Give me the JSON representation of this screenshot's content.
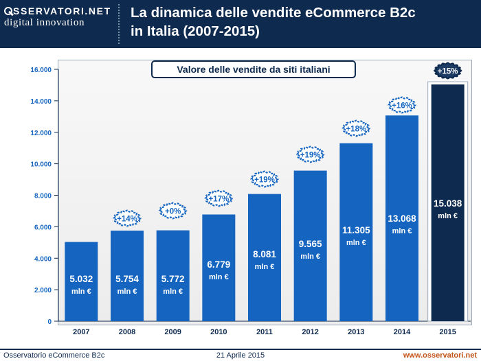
{
  "header": {
    "logo_top": "SSERVATORI.NET",
    "logo_bottom": "digital innovation",
    "title_line1": "La dinamica delle vendite eCommerce B2c",
    "title_line2": "in Italia (2007-2015)"
  },
  "chart_data": {
    "type": "bar",
    "title": "Valore delle vendite da siti italiani",
    "categories": [
      "2007",
      "2008",
      "2009",
      "2010",
      "2011",
      "2012",
      "2013",
      "2014",
      "2015"
    ],
    "values": [
      5032,
      5754,
      5772,
      6779,
      8081,
      9565,
      11305,
      13068,
      15038
    ],
    "value_labels": [
      "5.032",
      "5.754",
      "5.772",
      "6.779",
      "8.081",
      "9.565",
      "11.305",
      "13.068",
      "15.038"
    ],
    "unit_label": "mln €",
    "growth_labels": [
      "+14%",
      "+0%",
      "+17%",
      "+19%",
      "+19%",
      "+18%",
      "+16%",
      "+15%"
    ],
    "growth_categories": [
      "2008",
      "2009",
      "2010",
      "2011",
      "2012",
      "2013",
      "2014",
      "2015"
    ],
    "ylim": [
      0,
      16000
    ],
    "yticks": [
      0,
      2000,
      4000,
      6000,
      8000,
      10000,
      12000,
      14000,
      16000
    ],
    "ytick_labels": [
      "0",
      "2.000",
      "4.000",
      "6.000",
      "8.000",
      "10.000",
      "12.000",
      "14.000",
      "16.000"
    ],
    "colors": {
      "bar": "#1565c0",
      "bar_highlight": "#0e2a4e",
      "label_text": "#1565c0"
    }
  },
  "footer": {
    "left": "Osservatorio eCommerce B2c",
    "center": "21 Aprile 2015",
    "right": "www.osservatori.net"
  }
}
